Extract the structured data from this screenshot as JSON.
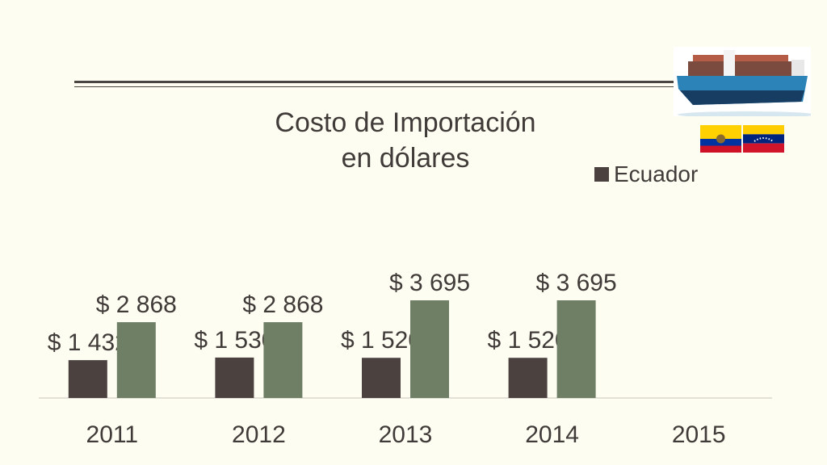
{
  "title_lines": [
    "Costo de Importación",
    "en dólares"
  ],
  "colors": {
    "background": "#fdfdf1",
    "series_1": "#4b4240",
    "series_2": "#6e7f66",
    "text": "#403a38",
    "axis": "#c9c5c0"
  },
  "legend": {
    "label": "Ecuador"
  },
  "images": {
    "ship": "container-ship-photo",
    "flag_1": "ecuador-flag",
    "flag_2": "venezuela-flag"
  },
  "chart_data": {
    "type": "bar",
    "title": "Costo de Importación en dólares",
    "categories": [
      "2011",
      "2012",
      "2013",
      "2014",
      "2015"
    ],
    "series": [
      {
        "name": "Ecuador",
        "values": [
          1432,
          1530,
          1520,
          1520,
          null
        ],
        "labels": [
          "$ 1 432",
          "$ 1 530",
          "$ 1 520",
          "$ 1 520",
          ""
        ]
      },
      {
        "values": [
          2868,
          2868,
          3695,
          3695,
          null
        ],
        "labels": [
          "$ 2 868",
          "$ 2 868",
          "$ 3 695",
          "$ 3 695",
          ""
        ]
      }
    ],
    "ylim": [
      0,
      3695
    ],
    "legend_position": "top-right",
    "grid": false
  }
}
